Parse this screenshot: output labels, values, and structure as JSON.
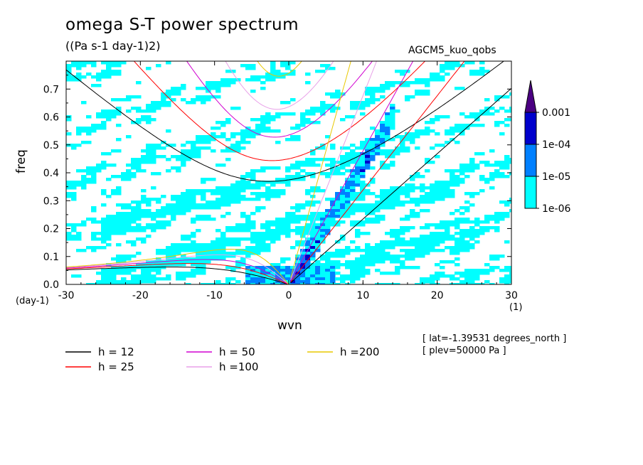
{
  "header": {
    "title": "omega S-T power spectrum",
    "subtitle": "((Pa s-1 day-1)2)",
    "run_name": "AGCM5_kuo_qobs"
  },
  "notes": {
    "lat": "[ lat=-1.39531 degrees_north ]",
    "plev": "[ plev=50000 Pa ]"
  },
  "chart_data": {
    "type": "heatmap",
    "title": "omega S-T power spectrum",
    "subtitle": "((Pa s-1 day-1)2)",
    "xlabel": "wvn",
    "xunit": "(1)",
    "ylabel": "freq",
    "yunit": "(day-1)",
    "xlim": [
      -30,
      30
    ],
    "ylim": [
      0,
      0.8
    ],
    "xticks": [
      -30,
      -20,
      -10,
      0,
      10,
      20,
      30
    ],
    "yticks": [
      0.0,
      0.1,
      0.2,
      0.3,
      0.4,
      0.5,
      0.6,
      0.7
    ],
    "colorbar": {
      "levels": [
        "1e-06",
        "1e-05",
        "1e-04",
        "0.001"
      ],
      "colors": [
        "#00ffff",
        "#0080ff",
        "#0000cc",
        "#4b0082"
      ]
    },
    "series": [
      {
        "name": "h = 12",
        "h": 12,
        "color": "#000000"
      },
      {
        "name": "h = 25",
        "h": 25,
        "color": "#ff0000"
      },
      {
        "name": "h = 50",
        "h": 50,
        "color": "#d000d0"
      },
      {
        "name": "h =100",
        "h": 100,
        "color": "#e8a0e8"
      },
      {
        "name": "h =200",
        "h": 200,
        "color": "#e8c800"
      }
    ]
  }
}
